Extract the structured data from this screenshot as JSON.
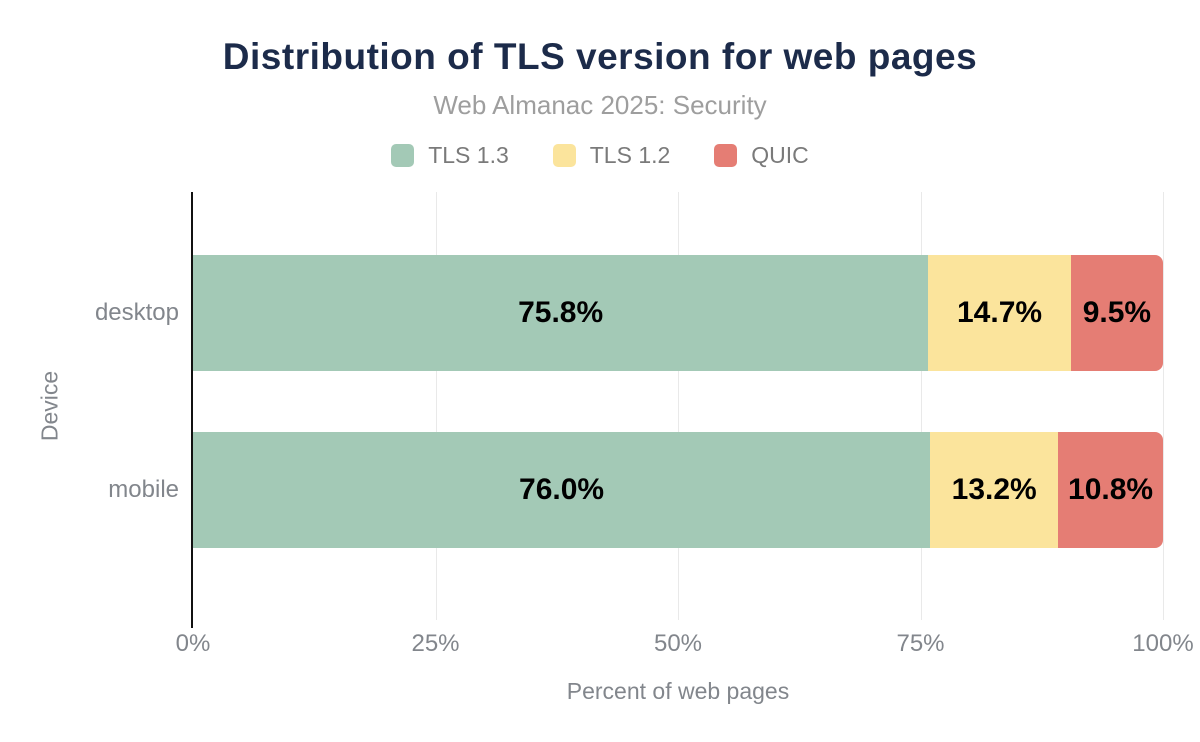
{
  "colors": {
    "background": "#ffffff",
    "title_text": "#1c2b4a",
    "subtitle_text": "#9e9e9e",
    "legend_text": "#7a7a7a",
    "axis_text": "#82868c",
    "value_label_text": "#000000",
    "gridline": "#e9e9e9",
    "axis_line": "#111111"
  },
  "chart_data": {
    "type": "bar",
    "orientation": "horizontal",
    "stacked": true,
    "title": "Distribution of TLS version for web pages",
    "subtitle": "Web Almanac 2025: Security",
    "xlabel": "Percent of web pages",
    "ylabel": "Device",
    "legend_position": "top",
    "grid": true,
    "categories": [
      "desktop",
      "mobile"
    ],
    "series": [
      {
        "name": "TLS 1.3",
        "color": "#a3c9b6",
        "values": [
          75.8,
          76.0
        ]
      },
      {
        "name": "TLS 1.2",
        "color": "#fbe49c",
        "values": [
          14.7,
          13.2
        ]
      },
      {
        "name": "QUIC",
        "color": "#e57d74",
        "values": [
          9.5,
          10.8
        ]
      }
    ],
    "value_labels": [
      [
        "75.8%",
        "14.7%",
        "9.5%"
      ],
      [
        "76.0%",
        "13.2%",
        "10.8%"
      ]
    ],
    "xticks": [
      {
        "value": 0,
        "label": "0%"
      },
      {
        "value": 25,
        "label": "25%"
      },
      {
        "value": 50,
        "label": "50%"
      },
      {
        "value": 75,
        "label": "75%"
      },
      {
        "value": 100,
        "label": "100%"
      }
    ],
    "xlim": [
      0,
      100
    ]
  }
}
